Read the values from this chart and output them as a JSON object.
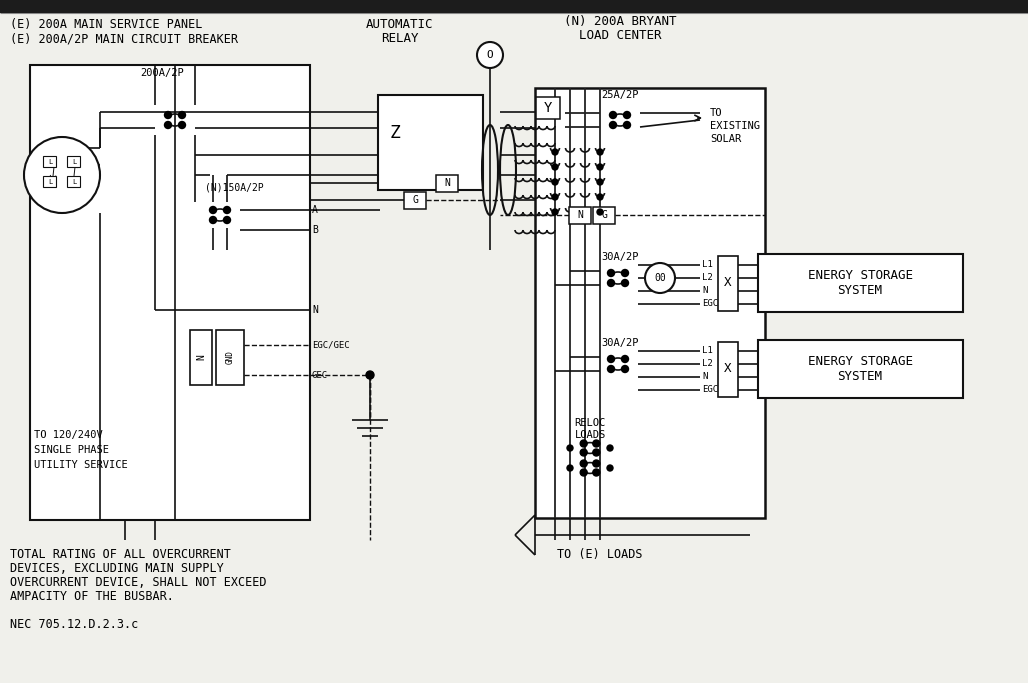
{
  "bg_color": "#f0f0eb",
  "line_color": "#111111",
  "font_family": "monospace",
  "label_sp1": "(E) 200A MAIN SERVICE PANEL",
  "label_sp2": "(E) 200A/2P MAIN CIRCUIT BREAKER",
  "label_relay1": "AUTOMATIC",
  "label_relay2": "RELAY",
  "label_lc1": "(N) 200A BRYANT",
  "label_lc2": "LOAD CENTER",
  "label_utility1": "TO 120/240V",
  "label_utility2": "SINGLE PHASE",
  "label_utility3": "UTILITY SERVICE",
  "label_solar1": "TO",
  "label_solar2": "EXISTING",
  "label_solar3": "SOLAR",
  "label_energy1": "ENERGY STORAGE\nSYSTEM",
  "label_energy2": "ENERGY STORAGE\nSYSTEM",
  "label_200A": "200A/2P",
  "label_150A": "(N)150A/2P",
  "label_25A": "25A/2P",
  "label_30A_1": "30A/2P",
  "label_30A_2": "30A/2P",
  "label_Z": "Z",
  "label_Y": "Y",
  "label_X1": "X",
  "label_X2": "X",
  "label_O": "O",
  "label_00": "00",
  "label_A": "A",
  "label_B": "B",
  "label_N": "N",
  "label_G": "G",
  "label_EGC": "EGC/GEC",
  "label_GEC": "GEC",
  "label_L1": "L1",
  "label_L2": "L2",
  "label_N_conn": "N",
  "label_EGC_conn": "EGC",
  "label_reloc": "RELOC\nLOADS",
  "label_eloads": "TO (E) LOADS",
  "label_footer1a": "TOTAL RATING OF ALL OVERCURRENT",
  "label_footer1b": "DEVICES, EXCLUDING MAIN SUPPLY",
  "label_footer1c": "OVERCURRENT DEVICE, SHALL NOT EXCEED",
  "label_footer1d": "AMPACITY OF THE BUSBAR.",
  "label_footer2": "NEC 705.12.D.2.3.c",
  "figsize": [
    10.28,
    6.83
  ],
  "dpi": 100
}
